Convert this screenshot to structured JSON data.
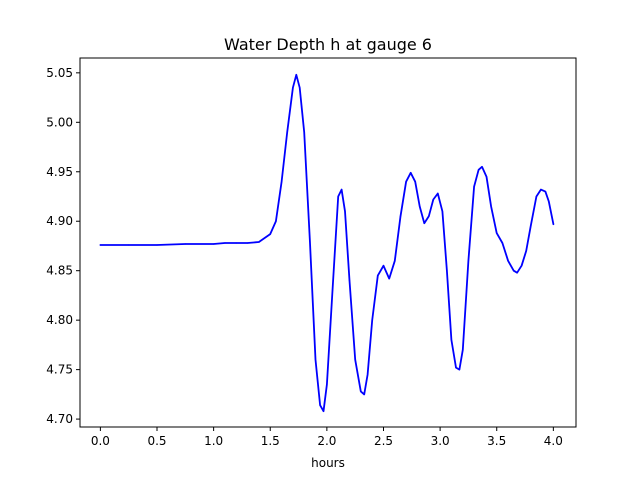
{
  "chart_data": {
    "type": "line",
    "title": "Water Depth h at gauge 6",
    "xlabel": "hours",
    "ylabel": "",
    "xlim": [
      -0.18,
      4.2
    ],
    "ylim": [
      4.692,
      5.065
    ],
    "grid": false,
    "legend": "none",
    "x_ticks": [
      0.0,
      0.5,
      1.0,
      1.5,
      2.0,
      2.5,
      3.0,
      3.5,
      4.0
    ],
    "x_tick_labels": [
      "0.0",
      "0.5",
      "1.0",
      "1.5",
      "2.0",
      "2.5",
      "3.0",
      "3.5",
      "4.0"
    ],
    "y_ticks": [
      4.7,
      4.75,
      4.8,
      4.85,
      4.9,
      4.95,
      5.0,
      5.05
    ],
    "y_tick_labels": [
      "4.70",
      "4.75",
      "4.80",
      "4.85",
      "4.90",
      "4.95",
      "5.00",
      "5.05"
    ],
    "series": [
      {
        "color": "#0000ff",
        "x": [
          0.0,
          0.25,
          0.5,
          0.75,
          1.0,
          1.1,
          1.2,
          1.3,
          1.4,
          1.5,
          1.55,
          1.6,
          1.65,
          1.7,
          1.73,
          1.76,
          1.8,
          1.85,
          1.9,
          1.94,
          1.97,
          2.0,
          2.05,
          2.1,
          2.13,
          2.16,
          2.2,
          2.25,
          2.3,
          2.33,
          2.36,
          2.4,
          2.45,
          2.5,
          2.55,
          2.6,
          2.65,
          2.7,
          2.74,
          2.78,
          2.82,
          2.86,
          2.9,
          2.94,
          2.98,
          3.02,
          3.06,
          3.1,
          3.14,
          3.17,
          3.2,
          3.25,
          3.3,
          3.34,
          3.37,
          3.41,
          3.45,
          3.5,
          3.55,
          3.6,
          3.65,
          3.68,
          3.72,
          3.76,
          3.8,
          3.85,
          3.89,
          3.93,
          3.96,
          4.0
        ],
        "y": [
          4.876,
          4.876,
          4.876,
          4.877,
          4.877,
          4.878,
          4.878,
          4.878,
          4.879,
          4.887,
          4.9,
          4.94,
          4.99,
          5.035,
          5.048,
          5.035,
          4.99,
          4.88,
          4.76,
          4.714,
          4.708,
          4.735,
          4.83,
          4.925,
          4.932,
          4.91,
          4.84,
          4.76,
          4.728,
          4.725,
          4.745,
          4.8,
          4.845,
          4.855,
          4.842,
          4.86,
          4.905,
          4.94,
          4.949,
          4.94,
          4.915,
          4.898,
          4.905,
          4.922,
          4.928,
          4.91,
          4.85,
          4.78,
          4.752,
          4.75,
          4.77,
          4.86,
          4.935,
          4.952,
          4.955,
          4.945,
          4.915,
          4.888,
          4.878,
          4.86,
          4.85,
          4.848,
          4.855,
          4.87,
          4.895,
          4.925,
          4.932,
          4.93,
          4.92,
          4.897
        ]
      }
    ]
  }
}
